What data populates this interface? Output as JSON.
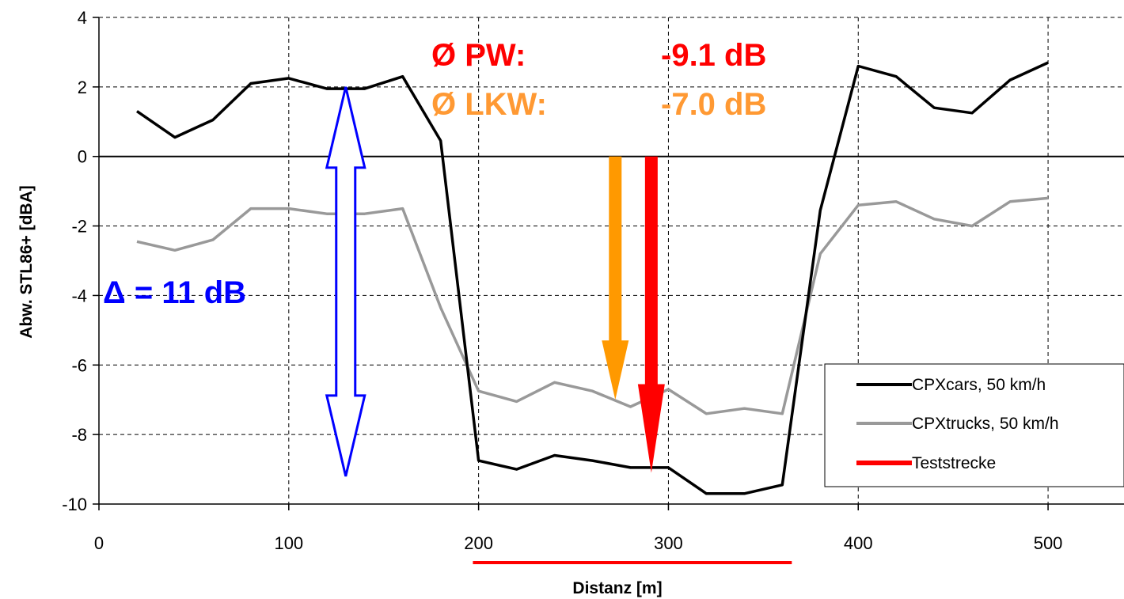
{
  "chart_data": {
    "type": "line",
    "xlabel": "Distanz [m]",
    "ylabel": "Abw. STL86+ [dBA]",
    "xlim": [
      0,
      540
    ],
    "ylim": [
      -10,
      4
    ],
    "xticks": [
      0,
      100,
      200,
      300,
      400,
      500
    ],
    "yticks": [
      4,
      2,
      0,
      -2,
      -4,
      -6,
      -8,
      -10
    ],
    "x_tick_labels": [
      "0",
      "100",
      "200",
      "300",
      "400",
      "500"
    ],
    "y_tick_labels": [
      "4",
      "2",
      "0",
      "-2",
      "-4",
      "-6",
      "-8",
      "-10"
    ],
    "grid": true,
    "legend_position": "bottom-right",
    "series": [
      {
        "name": "CPXcars, 50 km/h",
        "color": "#000000",
        "x": [
          20,
          40,
          60,
          80,
          100,
          120,
          140,
          160,
          180,
          200,
          220,
          240,
          260,
          280,
          300,
          320,
          340,
          360,
          380,
          400,
          420,
          440,
          460,
          480,
          500
        ],
        "y": [
          1.3,
          0.55,
          1.05,
          2.1,
          2.25,
          1.95,
          1.95,
          2.3,
          0.45,
          -8.75,
          -9.0,
          -8.6,
          -8.75,
          -8.95,
          -8.95,
          -9.7,
          -9.7,
          -9.45,
          -1.55,
          2.6,
          2.3,
          1.4,
          1.25,
          2.2,
          2.7
        ]
      },
      {
        "name": "CPXtrucks, 50 km/h",
        "color": "#999999",
        "x": [
          20,
          40,
          60,
          80,
          100,
          120,
          140,
          160,
          180,
          200,
          220,
          240,
          260,
          280,
          290,
          300,
          320,
          340,
          360,
          380,
          400,
          420,
          440,
          460,
          480,
          500
        ],
        "y": [
          -2.45,
          -2.7,
          -2.4,
          -1.5,
          -1.5,
          -1.65,
          -1.65,
          -1.5,
          -4.35,
          -6.75,
          -7.05,
          -6.5,
          -6.75,
          -7.2,
          -6.95,
          -6.7,
          -7.4,
          -7.25,
          -7.4,
          -2.8,
          -1.4,
          -1.3,
          -1.8,
          -2.0,
          -1.3,
          -1.2
        ]
      }
    ],
    "teststrecke": {
      "name": "Teststrecke",
      "color": "#ff0000",
      "x_start": 197,
      "x_end": 365
    },
    "annotations": {
      "pw_label": "Ø PW:",
      "pw_value": "-9.1 dB",
      "pw_color": "#ff0000",
      "lkw_label": "Ø LKW:",
      "lkw_value": "-7.0 dB",
      "lkw_color": "#ff9933",
      "delta_text": "Δ = 11 dB",
      "delta_color": "#0000ff",
      "orange_arrow": {
        "x": 272,
        "y_from": 0,
        "y_to": -7.0,
        "color": "#ff9900"
      },
      "red_arrow": {
        "x": 291,
        "y_from": 0,
        "y_to": -9.1,
        "color": "#ff0000"
      },
      "delta_arrow": {
        "x": 130,
        "y_top": 2.0,
        "y_bottom": -9.2,
        "color": "#0000ff"
      }
    }
  }
}
